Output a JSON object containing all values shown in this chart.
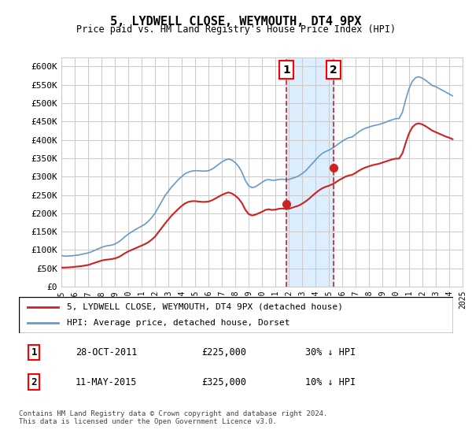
{
  "title": "5, LYDWELL CLOSE, WEYMOUTH, DT4 9PX",
  "subtitle": "Price paid vs. HM Land Registry's House Price Index (HPI)",
  "xlabel": "",
  "ylabel": "",
  "ylim": [
    0,
    625000
  ],
  "yticks": [
    0,
    50000,
    100000,
    150000,
    200000,
    250000,
    300000,
    350000,
    400000,
    450000,
    500000,
    550000,
    600000
  ],
  "ytick_labels": [
    "£0",
    "£50K",
    "£100K",
    "£150K",
    "£200K",
    "£250K",
    "£300K",
    "£350K",
    "£400K",
    "£450K",
    "£500K",
    "£550K",
    "£600K"
  ],
  "hpi_color": "#6699cc",
  "price_color": "#cc2222",
  "background_color": "#ffffff",
  "grid_color": "#cccccc",
  "shade_color": "#ddeeff",
  "marker1_date_num": 2011.83,
  "marker2_date_num": 2015.36,
  "marker1_label": "1",
  "marker2_label": "2",
  "marker1_price": 225000,
  "marker2_price": 325000,
  "legend_label_price": "5, LYDWELL CLOSE, WEYMOUTH, DT4 9PX (detached house)",
  "legend_label_hpi": "HPI: Average price, detached house, Dorset",
  "table_row1": [
    "1",
    "28-OCT-2011",
    "£225,000",
    "30% ↓ HPI"
  ],
  "table_row2": [
    "2",
    "11-MAY-2015",
    "£325,000",
    "10% ↓ HPI"
  ],
  "footer": "Contains HM Land Registry data © Crown copyright and database right 2024.\nThis data is licensed under the Open Government Licence v3.0.",
  "hpi_data": {
    "years": [
      1995.0,
      1995.25,
      1995.5,
      1995.75,
      1996.0,
      1996.25,
      1996.5,
      1996.75,
      1997.0,
      1997.25,
      1997.5,
      1997.75,
      1998.0,
      1998.25,
      1998.5,
      1998.75,
      1999.0,
      1999.25,
      1999.5,
      1999.75,
      2000.0,
      2000.25,
      2000.5,
      2000.75,
      2001.0,
      2001.25,
      2001.5,
      2001.75,
      2002.0,
      2002.25,
      2002.5,
      2002.75,
      2003.0,
      2003.25,
      2003.5,
      2003.75,
      2004.0,
      2004.25,
      2004.5,
      2004.75,
      2005.0,
      2005.25,
      2005.5,
      2005.75,
      2006.0,
      2006.25,
      2006.5,
      2006.75,
      2007.0,
      2007.25,
      2007.5,
      2007.75,
      2008.0,
      2008.25,
      2008.5,
      2008.75,
      2009.0,
      2009.25,
      2009.5,
      2009.75,
      2010.0,
      2010.25,
      2010.5,
      2010.75,
      2011.0,
      2011.25,
      2011.5,
      2011.75,
      2012.0,
      2012.25,
      2012.5,
      2012.75,
      2013.0,
      2013.25,
      2013.5,
      2013.75,
      2014.0,
      2014.25,
      2014.5,
      2014.75,
      2015.0,
      2015.25,
      2015.5,
      2015.75,
      2016.0,
      2016.25,
      2016.5,
      2016.75,
      2017.0,
      2017.25,
      2017.5,
      2017.75,
      2018.0,
      2018.25,
      2018.5,
      2018.75,
      2019.0,
      2019.25,
      2019.5,
      2019.75,
      2020.0,
      2020.25,
      2020.5,
      2020.75,
      2021.0,
      2021.25,
      2021.5,
      2021.75,
      2022.0,
      2022.25,
      2022.5,
      2022.75,
      2023.0,
      2023.25,
      2023.5,
      2023.75,
      2024.0,
      2024.25
    ],
    "values": [
      85000,
      83000,
      83500,
      84000,
      85000,
      86000,
      88000,
      90000,
      92000,
      95000,
      99000,
      103000,
      107000,
      110000,
      112000,
      113000,
      116000,
      121000,
      128000,
      136000,
      143000,
      149000,
      155000,
      160000,
      165000,
      170000,
      178000,
      188000,
      200000,
      216000,
      232000,
      248000,
      260000,
      272000,
      282000,
      292000,
      300000,
      308000,
      312000,
      315000,
      316000,
      316000,
      315000,
      315000,
      316000,
      320000,
      326000,
      333000,
      340000,
      345000,
      348000,
      345000,
      338000,
      328000,
      312000,
      290000,
      275000,
      270000,
      272000,
      278000,
      284000,
      290000,
      292000,
      290000,
      290000,
      292000,
      293000,
      292000,
      292000,
      295000,
      298000,
      302000,
      308000,
      315000,
      325000,
      335000,
      345000,
      355000,
      363000,
      368000,
      372000,
      377000,
      383000,
      390000,
      396000,
      402000,
      406000,
      408000,
      415000,
      422000,
      428000,
      432000,
      435000,
      438000,
      440000,
      442000,
      445000,
      448000,
      452000,
      455000,
      458000,
      458000,
      475000,
      510000,
      540000,
      560000,
      570000,
      572000,
      568000,
      562000,
      555000,
      548000,
      545000,
      540000,
      535000,
      530000,
      525000,
      520000
    ]
  },
  "price_data": {
    "years": [
      1995.0,
      1995.25,
      1995.5,
      1995.75,
      1996.0,
      1996.25,
      1996.5,
      1996.75,
      1997.0,
      1997.25,
      1997.5,
      1997.75,
      1998.0,
      1998.25,
      1998.5,
      1998.75,
      1999.0,
      1999.25,
      1999.5,
      1999.75,
      2000.0,
      2000.25,
      2000.5,
      2000.75,
      2001.0,
      2001.25,
      2001.5,
      2001.75,
      2002.0,
      2002.25,
      2002.5,
      2002.75,
      2003.0,
      2003.25,
      2003.5,
      2003.75,
      2004.0,
      2004.25,
      2004.5,
      2004.75,
      2005.0,
      2005.25,
      2005.5,
      2005.75,
      2006.0,
      2006.25,
      2006.5,
      2006.75,
      2007.0,
      2007.25,
      2007.5,
      2007.75,
      2008.0,
      2008.25,
      2008.5,
      2008.75,
      2009.0,
      2009.25,
      2009.5,
      2009.75,
      2010.0,
      2010.25,
      2010.5,
      2010.75,
      2011.0,
      2011.25,
      2011.5,
      2011.75,
      2012.0,
      2012.25,
      2012.5,
      2012.75,
      2013.0,
      2013.25,
      2013.5,
      2013.75,
      2014.0,
      2014.25,
      2014.5,
      2014.75,
      2015.0,
      2015.25,
      2015.5,
      2015.75,
      2016.0,
      2016.25,
      2016.5,
      2016.75,
      2017.0,
      2017.25,
      2017.5,
      2017.75,
      2018.0,
      2018.25,
      2018.5,
      2018.75,
      2019.0,
      2019.25,
      2019.5,
      2019.75,
      2020.0,
      2020.25,
      2020.5,
      2020.75,
      2021.0,
      2021.25,
      2021.5,
      2021.75,
      2022.0,
      2022.25,
      2022.5,
      2022.75,
      2023.0,
      2023.25,
      2023.5,
      2023.75,
      2024.0,
      2024.25
    ],
    "values": [
      52000,
      52000,
      52500,
      53000,
      54000,
      55000,
      56000,
      57500,
      59000,
      62000,
      65000,
      68000,
      71000,
      73000,
      74000,
      75000,
      77000,
      80000,
      85000,
      91000,
      96000,
      100000,
      104000,
      108000,
      112000,
      116000,
      121000,
      128000,
      136000,
      148000,
      160000,
      172000,
      183000,
      194000,
      203000,
      212000,
      220000,
      227000,
      231000,
      233000,
      233000,
      232000,
      231000,
      231000,
      232000,
      235000,
      240000,
      245000,
      250000,
      254000,
      257000,
      254000,
      248000,
      240000,
      228000,
      210000,
      198000,
      194000,
      196000,
      200000,
      204000,
      209000,
      211000,
      209000,
      210000,
      212000,
      213000,
      212000,
      212000,
      215000,
      218000,
      221000,
      226000,
      232000,
      239000,
      247000,
      255000,
      262000,
      268000,
      272000,
      275000,
      279000,
      284000,
      290000,
      295000,
      300000,
      303000,
      305000,
      310000,
      316000,
      321000,
      325000,
      328000,
      331000,
      333000,
      335000,
      338000,
      341000,
      344000,
      347000,
      349000,
      349000,
      363000,
      392000,
      418000,
      435000,
      443000,
      445000,
      442000,
      437000,
      431000,
      425000,
      421000,
      417000,
      413000,
      409000,
      406000,
      402000
    ]
  }
}
